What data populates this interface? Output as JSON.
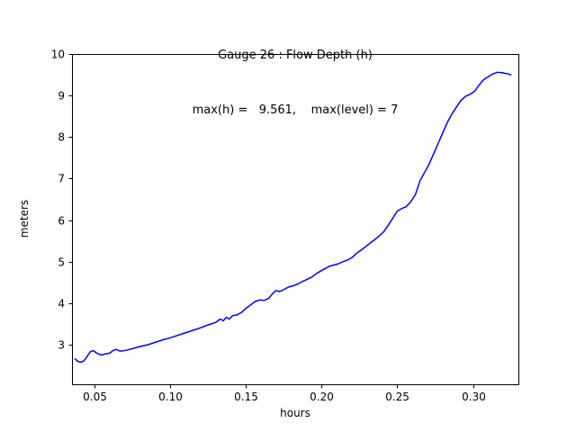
{
  "chart_data": {
    "type": "line",
    "title": "Gauge 26 : Flow Depth (h)",
    "subtitle": "max(h) =   9.561,    max(level) = 7",
    "xlabel": "hours",
    "ylabel": "meters",
    "grid": false,
    "legend": null,
    "xlim": [
      0.035,
      0.33
    ],
    "ylim": [
      2.05,
      10.0
    ],
    "x_ticks": [
      0.05,
      0.1,
      0.15,
      0.2,
      0.25,
      0.3
    ],
    "x_tick_labels": [
      "0.05",
      "0.10",
      "0.15",
      "0.20",
      "0.25",
      "0.30"
    ],
    "y_ticks": [
      3,
      4,
      5,
      6,
      7,
      8,
      9,
      10
    ],
    "y_tick_labels": [
      "3",
      "4",
      "5",
      "6",
      "7",
      "8",
      "9",
      "10"
    ],
    "series": [
      {
        "name": "flow-depth",
        "color": "#0000ff",
        "line_width": 1.5,
        "points": [
          [
            0.037,
            2.66
          ],
          [
            0.039,
            2.6
          ],
          [
            0.041,
            2.58
          ],
          [
            0.043,
            2.62
          ],
          [
            0.045,
            2.72
          ],
          [
            0.047,
            2.83
          ],
          [
            0.049,
            2.86
          ],
          [
            0.051,
            2.81
          ],
          [
            0.053,
            2.77
          ],
          [
            0.055,
            2.76
          ],
          [
            0.057,
            2.78
          ],
          [
            0.06,
            2.8
          ],
          [
            0.062,
            2.86
          ],
          [
            0.064,
            2.89
          ],
          [
            0.066,
            2.86
          ],
          [
            0.068,
            2.85
          ],
          [
            0.072,
            2.88
          ],
          [
            0.076,
            2.92
          ],
          [
            0.08,
            2.96
          ],
          [
            0.085,
            3.0
          ],
          [
            0.09,
            3.06
          ],
          [
            0.095,
            3.12
          ],
          [
            0.1,
            3.17
          ],
          [
            0.105,
            3.23
          ],
          [
            0.11,
            3.29
          ],
          [
            0.115,
            3.35
          ],
          [
            0.12,
            3.41
          ],
          [
            0.125,
            3.48
          ],
          [
            0.13,
            3.54
          ],
          [
            0.133,
            3.62
          ],
          [
            0.135,
            3.58
          ],
          [
            0.137,
            3.66
          ],
          [
            0.139,
            3.62
          ],
          [
            0.141,
            3.7
          ],
          [
            0.144,
            3.72
          ],
          [
            0.147,
            3.78
          ],
          [
            0.15,
            3.88
          ],
          [
            0.153,
            3.96
          ],
          [
            0.156,
            4.04
          ],
          [
            0.159,
            4.08
          ],
          [
            0.162,
            4.07
          ],
          [
            0.165,
            4.12
          ],
          [
            0.168,
            4.25
          ],
          [
            0.17,
            4.31
          ],
          [
            0.172,
            4.28
          ],
          [
            0.175,
            4.33
          ],
          [
            0.178,
            4.39
          ],
          [
            0.181,
            4.42
          ],
          [
            0.184,
            4.46
          ],
          [
            0.187,
            4.52
          ],
          [
            0.19,
            4.57
          ],
          [
            0.193,
            4.62
          ],
          [
            0.196,
            4.7
          ],
          [
            0.199,
            4.77
          ],
          [
            0.202,
            4.83
          ],
          [
            0.205,
            4.89
          ],
          [
            0.208,
            4.92
          ],
          [
            0.211,
            4.95
          ],
          [
            0.214,
            5.0
          ],
          [
            0.217,
            5.04
          ],
          [
            0.22,
            5.1
          ],
          [
            0.223,
            5.2
          ],
          [
            0.226,
            5.28
          ],
          [
            0.229,
            5.36
          ],
          [
            0.232,
            5.45
          ],
          [
            0.235,
            5.53
          ],
          [
            0.238,
            5.62
          ],
          [
            0.241,
            5.72
          ],
          [
            0.244,
            5.88
          ],
          [
            0.247,
            6.05
          ],
          [
            0.25,
            6.22
          ],
          [
            0.253,
            6.28
          ],
          [
            0.256,
            6.33
          ],
          [
            0.259,
            6.45
          ],
          [
            0.262,
            6.62
          ],
          [
            0.265,
            6.95
          ],
          [
            0.268,
            7.15
          ],
          [
            0.271,
            7.35
          ],
          [
            0.274,
            7.6
          ],
          [
            0.277,
            7.85
          ],
          [
            0.28,
            8.1
          ],
          [
            0.283,
            8.35
          ],
          [
            0.286,
            8.55
          ],
          [
            0.289,
            8.72
          ],
          [
            0.292,
            8.88
          ],
          [
            0.295,
            8.98
          ],
          [
            0.298,
            9.03
          ],
          [
            0.301,
            9.1
          ],
          [
            0.304,
            9.25
          ],
          [
            0.307,
            9.38
          ],
          [
            0.31,
            9.45
          ],
          [
            0.313,
            9.52
          ],
          [
            0.316,
            9.56
          ],
          [
            0.319,
            9.55
          ],
          [
            0.322,
            9.53
          ],
          [
            0.325,
            9.5
          ]
        ]
      }
    ]
  }
}
